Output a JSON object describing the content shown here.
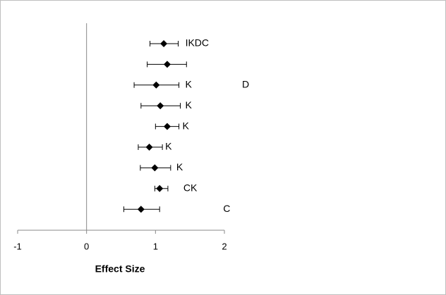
{
  "chart_data": {
    "type": "forest",
    "x_label": "Effect Size",
    "xlim": [
      -1,
      2
    ],
    "xticks": [
      -1,
      0,
      1,
      2
    ],
    "labels": [
      "IKDC",
      null,
      "K",
      "K",
      "K",
      "K",
      "K",
      "CK",
      "C"
    ],
    "values": [
      1.12,
      1.17,
      1.01,
      1.07,
      1.17,
      0.91,
      0.99,
      1.06,
      0.79
    ],
    "lower": [
      0.92,
      0.88,
      0.69,
      0.79,
      1.0,
      0.75,
      0.78,
      0.99,
      0.54
    ],
    "upper": [
      1.33,
      1.45,
      1.34,
      1.36,
      1.34,
      1.1,
      1.22,
      1.18,
      1.06
    ],
    "annotations": [
      "D"
    ],
    "color": "#000000"
  }
}
